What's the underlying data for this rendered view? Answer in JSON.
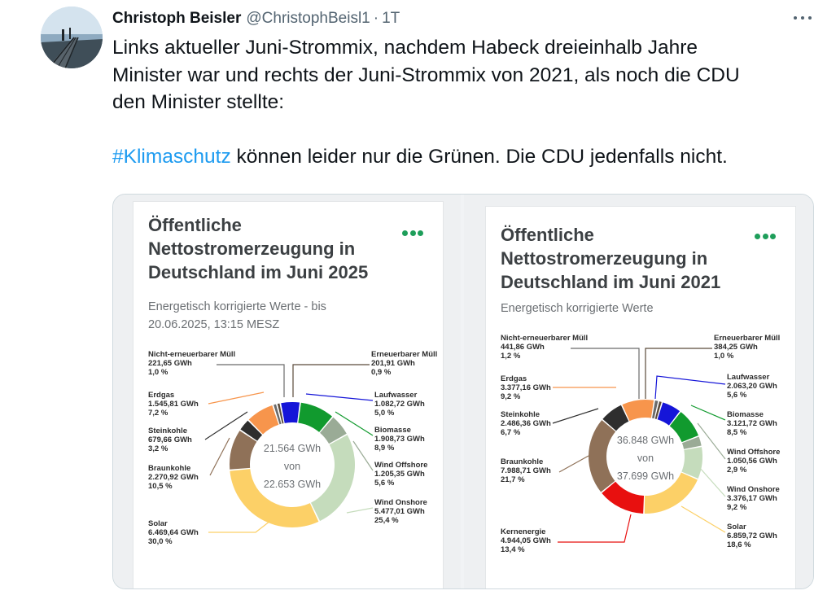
{
  "tweet": {
    "author_name": "Christoph Beisler",
    "handle": "@ChristophBeisl1",
    "separator": "·",
    "time": "1T",
    "text_lines": [
      "Links aktueller Juni-Strommix, nachdem Habeck  dreieinhalb Jahre",
      "Minister war und rechts der Juni-Strommix von 2021, als noch die CDU",
      "den Minister stellte:"
    ],
    "hashtag": "#Klimaschutz",
    "text_after_hashtag": " können leider nur die Grünen. Die CDU jedenfalls nicht.",
    "more_icon": "more-horizontal-icon",
    "avatar_icon": "pier-photo"
  },
  "charts": {
    "left": {
      "title_lines": [
        "Öffentliche",
        "Nettostromerzeugung in",
        "Deutschland im Juni 2025"
      ],
      "subtitle_lines": [
        "Energetisch korrigierte Werte - bis",
        "20.06.2025, 13:15 MESZ"
      ],
      "center_lines": [
        "21.564 GWh",
        "von",
        "22.653 GWh"
      ]
    },
    "right": {
      "title_lines": [
        "Öffentliche",
        "Nettostromerzeugung in",
        "Deutschland im Juni 2021"
      ],
      "subtitle_lines": [
        "Energetisch korrigierte Werte"
      ],
      "center_lines": [
        "36.848 GWh",
        "von",
        "37.699 GWh"
      ]
    }
  },
  "chart_data": [
    {
      "type": "pie",
      "title": "Öffentliche Nettostromerzeugung in Deutschland im Juni 2025",
      "subtitle": "Energetisch korrigierte Werte - bis 20.06.2025, 13:15 MESZ",
      "total_label": "21.564 GWh von 22.653 GWh",
      "slices": [
        {
          "name": "Nicht-erneuerbarer Müll",
          "value_text": "221,65 GWh",
          "pct_text": "1,0 %",
          "value": 221.65,
          "pct": 1.0,
          "color": "#6b6b6b"
        },
        {
          "name": "Erneuerbarer Müll",
          "value_text": "201,91 GWh",
          "pct_text": "0,9 %",
          "value": 201.91,
          "pct": 0.9,
          "color": "#5a4a3a"
        },
        {
          "name": "Laufwasser",
          "value_text": "1.082,72 GWh",
          "pct_text": "5,0 %",
          "value": 1082.72,
          "pct": 5.0,
          "color": "#1515d8"
        },
        {
          "name": "Biomasse",
          "value_text": "1.908,73 GWh",
          "pct_text": "8,9 %",
          "value": 1908.73,
          "pct": 8.9,
          "color": "#119a2e"
        },
        {
          "name": "Wind Offshore",
          "value_text": "1.205,35 GWh",
          "pct_text": "5,6 %",
          "value": 1205.35,
          "pct": 5.6,
          "color": "#9aab96"
        },
        {
          "name": "Wind Onshore",
          "value_text": "5.477,01 GWh",
          "pct_text": "25,4 %",
          "value": 5477.01,
          "pct": 25.4,
          "color": "#c5dcbc"
        },
        {
          "name": "Solar",
          "value_text": "6.469,64 GWh",
          "pct_text": "30,0 %",
          "value": 6469.64,
          "pct": 30.0,
          "color": "#fcd067"
        },
        {
          "name": "Braunkohle",
          "value_text": "2.270,92 GWh",
          "pct_text": "10,5 %",
          "value": 2270.92,
          "pct": 10.5,
          "color": "#8f7158"
        },
        {
          "name": "Steinkohle",
          "value_text": "679,66 GWh",
          "pct_text": "3,2 %",
          "value": 679.66,
          "pct": 3.2,
          "color": "#2e2e2e"
        },
        {
          "name": "Erdgas",
          "value_text": "1.545,81 GWh",
          "pct_text": "7,2 %",
          "value": 1545.81,
          "pct": 7.2,
          "color": "#f7954c"
        }
      ]
    },
    {
      "type": "pie",
      "title": "Öffentliche Nettostromerzeugung in Deutschland im Juni 2021",
      "subtitle": "Energetisch korrigierte Werte",
      "total_label": "36.848 GWh von 37.699 GWh",
      "slices": [
        {
          "name": "Nicht-erneuerbarer Müll",
          "value_text": "441,86 GWh",
          "pct_text": "1,2 %",
          "value": 441.86,
          "pct": 1.2,
          "color": "#6b6b6b"
        },
        {
          "name": "Erneuerbarer Müll",
          "value_text": "384,25 GWh",
          "pct_text": "1,0 %",
          "value": 384.25,
          "pct": 1.0,
          "color": "#5a4a3a"
        },
        {
          "name": "Laufwasser",
          "value_text": "2.063,20 GWh",
          "pct_text": "5,6 %",
          "value": 2063.2,
          "pct": 5.6,
          "color": "#1515d8"
        },
        {
          "name": "Biomasse",
          "value_text": "3.121,72 GWh",
          "pct_text": "8,5 %",
          "value": 3121.72,
          "pct": 8.5,
          "color": "#119a2e"
        },
        {
          "name": "Wind Offshore",
          "value_text": "1.050,56 GWh",
          "pct_text": "2,9 %",
          "value": 1050.56,
          "pct": 2.9,
          "color": "#9aab96"
        },
        {
          "name": "Wind Onshore",
          "value_text": "3.376,17 GWh",
          "pct_text": "9,2 %",
          "value": 3376.17,
          "pct": 9.2,
          "color": "#c5dcbc"
        },
        {
          "name": "Solar",
          "value_text": "6.859,72 GWh",
          "pct_text": "18,6 %",
          "value": 6859.72,
          "pct": 18.6,
          "color": "#fcd067"
        },
        {
          "name": "Kernenergie",
          "value_text": "4.944,05 GWh",
          "pct_text": "13,4 %",
          "value": 4944.05,
          "pct": 13.4,
          "color": "#e8100f"
        },
        {
          "name": "Braunkohle",
          "value_text": "7.988,71 GWh",
          "pct_text": "21,7 %",
          "value": 7988.71,
          "pct": 21.7,
          "color": "#8f7158"
        },
        {
          "name": "Steinkohle",
          "value_text": "2.486,36 GWh",
          "pct_text": "6,7 %",
          "value": 2486.36,
          "pct": 6.7,
          "color": "#2e2e2e"
        },
        {
          "name": "Erdgas",
          "value_text": "3.377,16 GWh",
          "pct_text": "9,2 %",
          "value": 3377.16,
          "pct": 9.2,
          "color": "#f7954c"
        }
      ]
    }
  ]
}
